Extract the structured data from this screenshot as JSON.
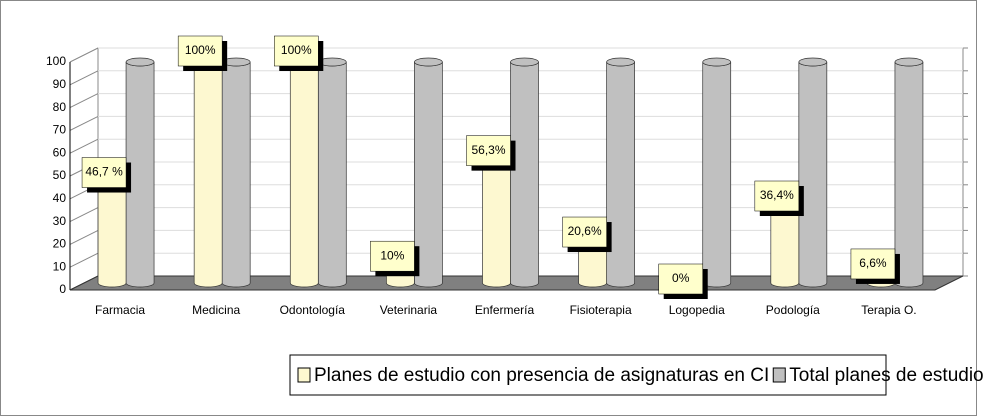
{
  "chart_data": {
    "type": "bar",
    "categories": [
      "Farmacia",
      "Medicina",
      "Odontología",
      "Veterinaria",
      "Enfermería",
      "Fisioterapia",
      "Logopedia",
      "Podología",
      "Terapia O."
    ],
    "series": [
      {
        "name": "Planes de estudio con presencia de asignaturas en CI",
        "color": "#fdf8d0",
        "values": [
          46.7,
          100,
          100,
          10,
          56.3,
          20.6,
          0,
          36.4,
          6.6
        ],
        "value_labels": [
          "46,7 %",
          "100%",
          "100%",
          "10%",
          "56,3%",
          "20,6%",
          "0%",
          "36,4%",
          "6,6%"
        ]
      },
      {
        "name": "Total planes de estudio",
        "color": "#c0c0c0",
        "values": [
          100,
          100,
          100,
          100,
          100,
          100,
          100,
          100,
          100
        ]
      }
    ],
    "ylim": [
      0,
      100
    ],
    "yticks": [
      0,
      10,
      20,
      30,
      40,
      50,
      60,
      70,
      80,
      90,
      100
    ]
  }
}
